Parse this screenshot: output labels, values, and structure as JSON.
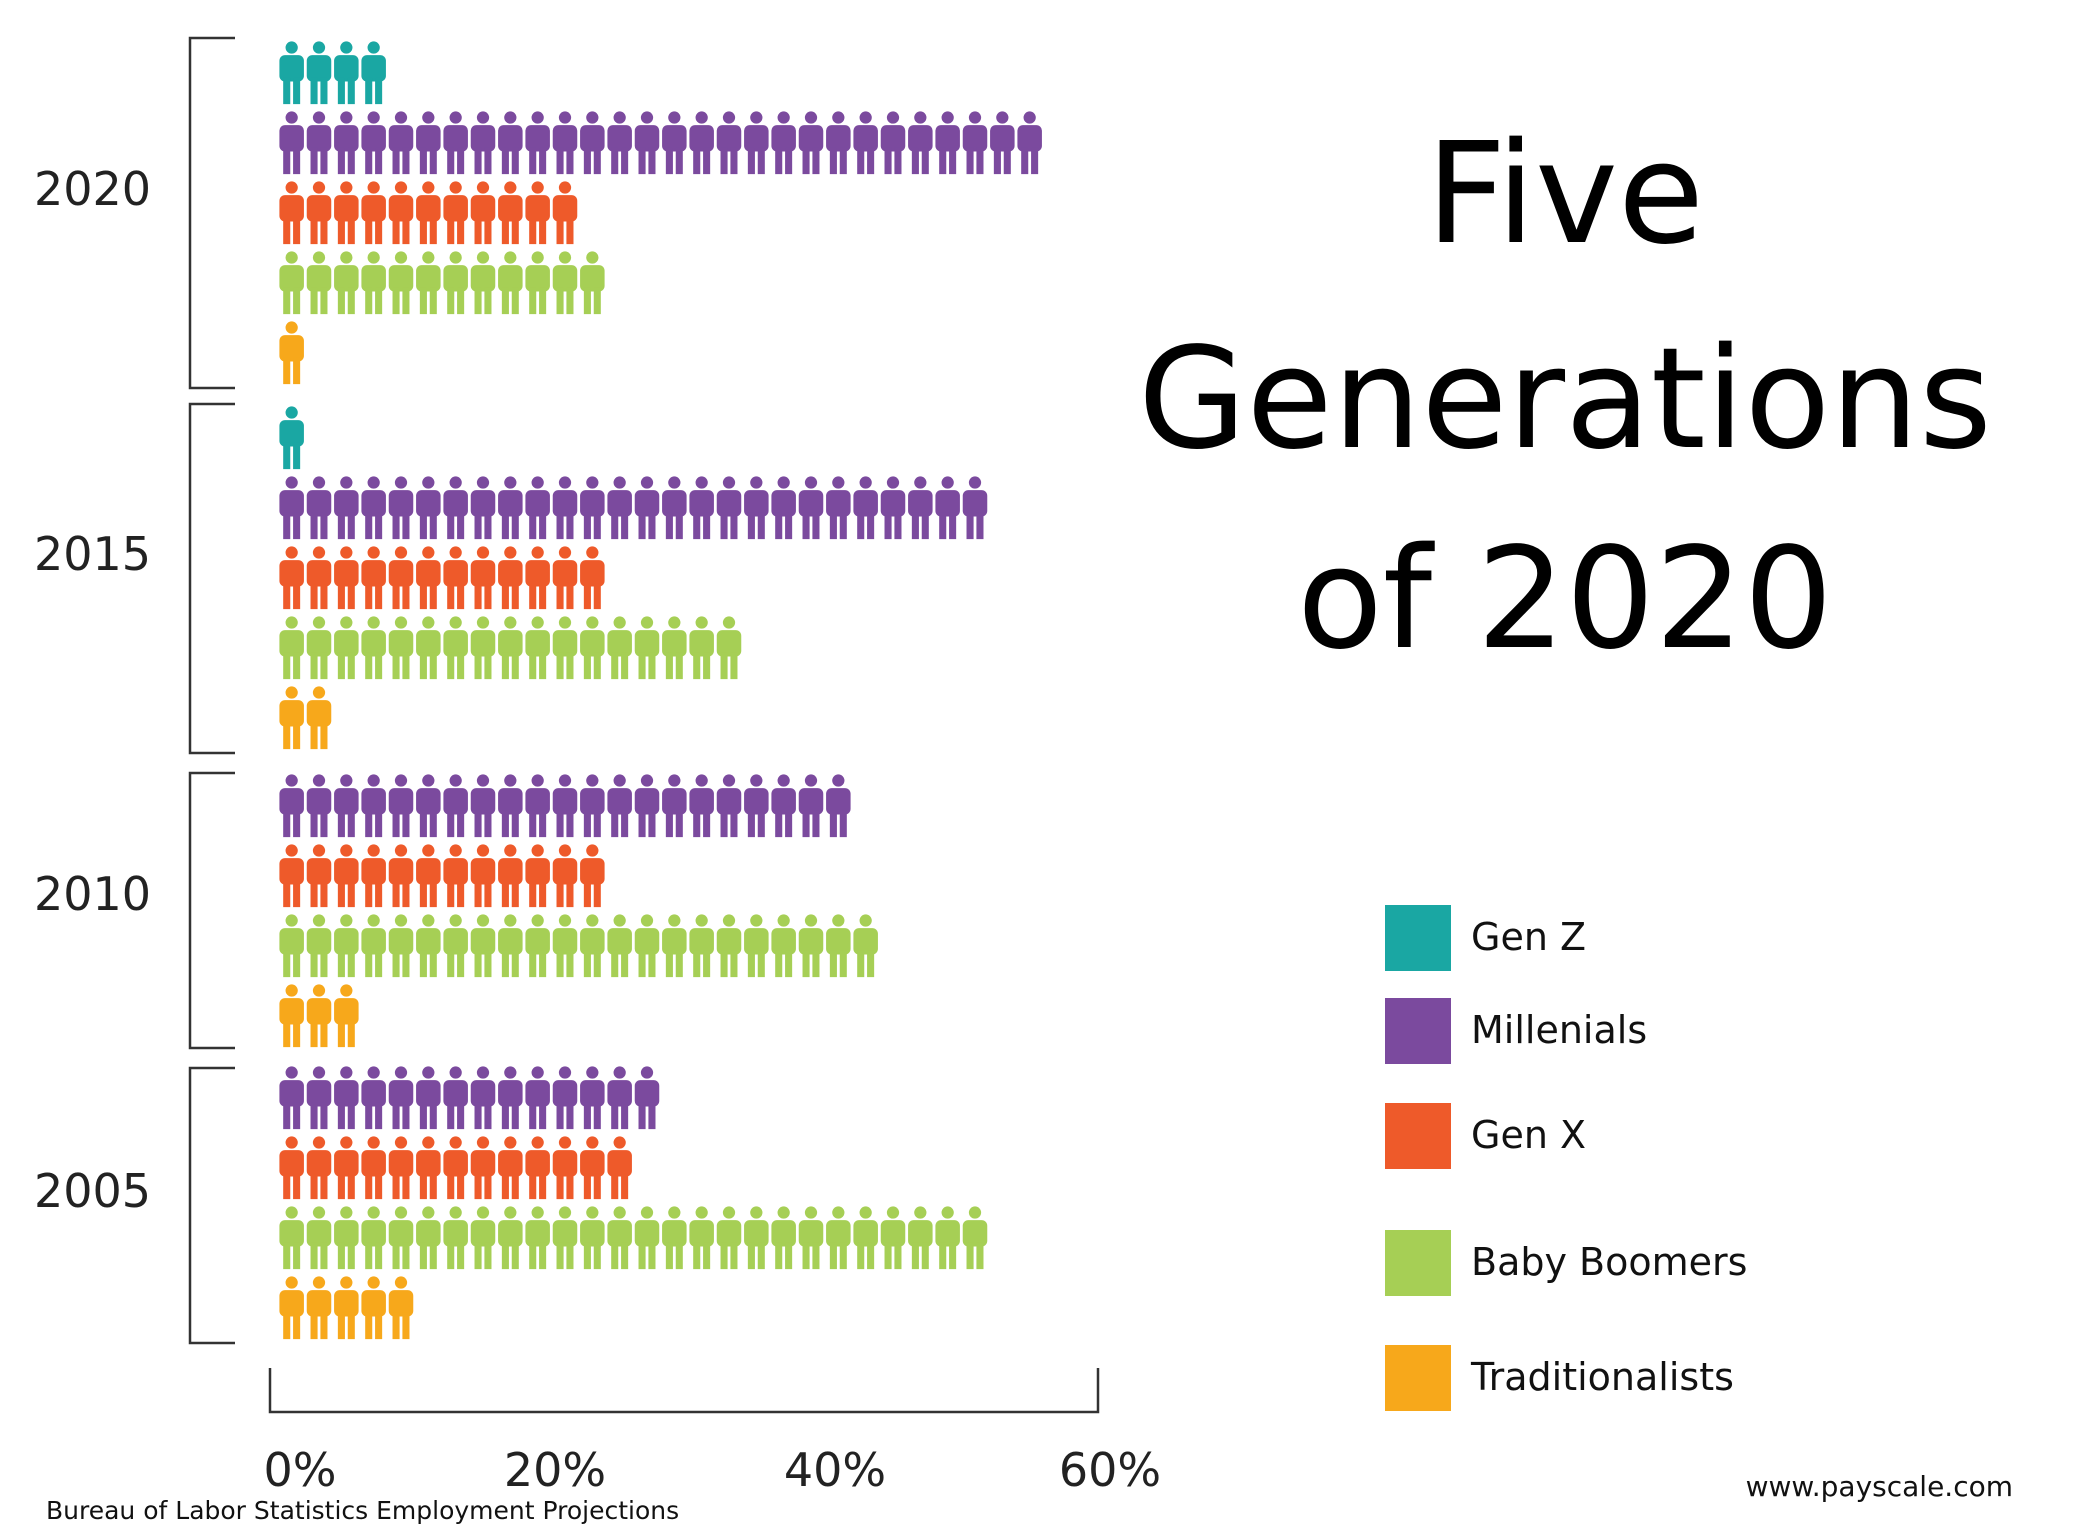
{
  "title_lines": [
    "Five",
    "Generations",
    "of 2020"
  ],
  "source": "Bureau of Labor Statistics Employment Projections",
  "site": "www.payscale.com",
  "legend": [
    {
      "label": "Gen Z",
      "color": "#1aa7a3"
    },
    {
      "label": "Millenials",
      "color": "#7b4a9e"
    },
    {
      "label": "Gen X",
      "color": "#ee5a2a"
    },
    {
      "label": "Baby Boomers",
      "color": "#a6cf55"
    },
    {
      "label": "Traditionalists",
      "color": "#f7a81b"
    }
  ],
  "chart_data": {
    "type": "bar",
    "orientation": "horizontal",
    "unit_per_icon": "2%",
    "groups": [
      {
        "year": "2020",
        "values": {
          "Gen Z": 8,
          "Millenials": 56,
          "Gen X": 22,
          "Baby Boomers": 24,
          "Traditionalists": 2
        }
      },
      {
        "year": "2015",
        "values": {
          "Gen Z": 2,
          "Millenials": 52,
          "Gen X": 24,
          "Baby Boomers": 34,
          "Traditionalists": 4
        }
      },
      {
        "year": "2010",
        "values": {
          "Millenials": 42,
          "Gen X": 24,
          "Baby Boomers": 44,
          "Traditionalists": 6
        }
      },
      {
        "year": "2005",
        "values": {
          "Millenials": 28,
          "Gen X": 26,
          "Baby Boomers": 52,
          "Traditionalists": 10
        }
      }
    ],
    "x_ticks": [
      "0%",
      "20%",
      "40%",
      "60%"
    ],
    "xlim": [
      0,
      60
    ]
  }
}
